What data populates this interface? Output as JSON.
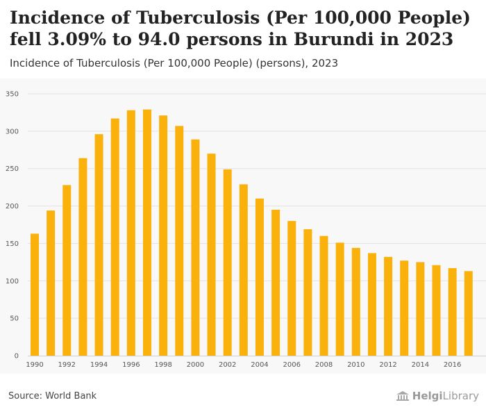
{
  "header": {
    "title": "Incidence of Tuberculosis (Per 100,000 People) fell 3.09% to 94.0 persons in Burundi in 2023",
    "subtitle": "Incidence of Tuberculosis (Per 100,000 People) (persons), 2023"
  },
  "footer": {
    "source": "Source: World Bank",
    "logo_main": "Helgi",
    "logo_suffix": "Library"
  },
  "colors": {
    "bar": "#FBB10B",
    "plot_background": "#F8F8F8",
    "grid": "#E2E2E2"
  },
  "chart_data": {
    "type": "bar",
    "categories": [
      "1990",
      "1991",
      "1992",
      "1993",
      "1994",
      "1995",
      "1996",
      "1997",
      "1998",
      "1999",
      "2000",
      "2001",
      "2002",
      "2003",
      "2004",
      "2005",
      "2006",
      "2007",
      "2008",
      "2009",
      "2010",
      "2011",
      "2012",
      "2013",
      "2014",
      "2015",
      "2016",
      "2017"
    ],
    "values": [
      163,
      194,
      228,
      264,
      296,
      317,
      328,
      329,
      321,
      307,
      289,
      270,
      249,
      229,
      210,
      195,
      180,
      169,
      160,
      151,
      144,
      137,
      132,
      127,
      125,
      121,
      117,
      113
    ],
    "x_tick_labels": [
      "1990",
      "1992",
      "1994",
      "1996",
      "1998",
      "2000",
      "2002",
      "2004",
      "2006",
      "2008",
      "2010",
      "2012",
      "2014",
      "2016"
    ],
    "y_ticks": [
      0,
      50,
      100,
      150,
      200,
      250,
      300,
      350
    ],
    "ylim": [
      0,
      350
    ],
    "grid": true,
    "legend": "none"
  }
}
